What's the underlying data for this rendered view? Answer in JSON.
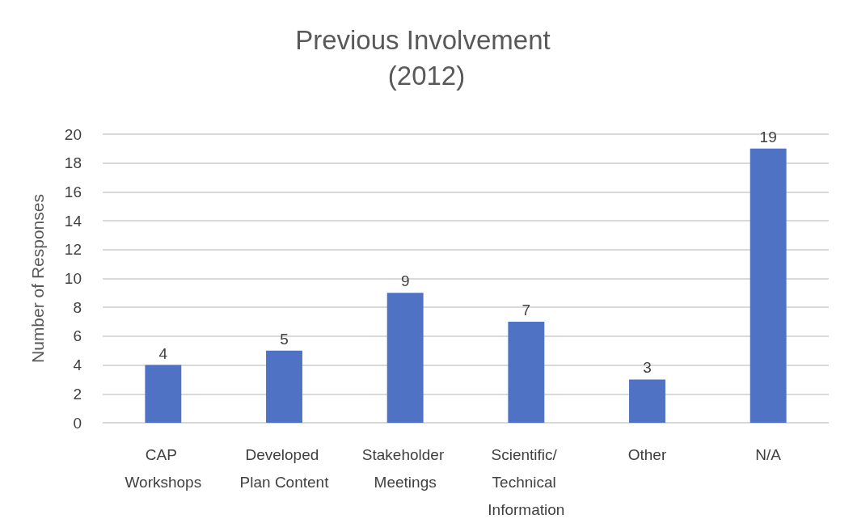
{
  "chart_data": {
    "type": "bar",
    "title": "Previous Involvement (2012)",
    "ylabel": "Number of Responses",
    "categories": [
      "CAP Workshops",
      "Developed Plan Content",
      "Stakeholder Meetings",
      "Scientific/ Technical Information",
      "Other",
      "N/A"
    ],
    "values": [
      4,
      5,
      9,
      7,
      3,
      19
    ],
    "color": "#4f72c4",
    "ylim": [
      0,
      20
    ],
    "yticks": [
      0,
      2,
      4,
      6,
      8,
      10,
      12,
      14,
      16,
      18,
      20
    ],
    "grid": "y",
    "data_labels": true
  }
}
